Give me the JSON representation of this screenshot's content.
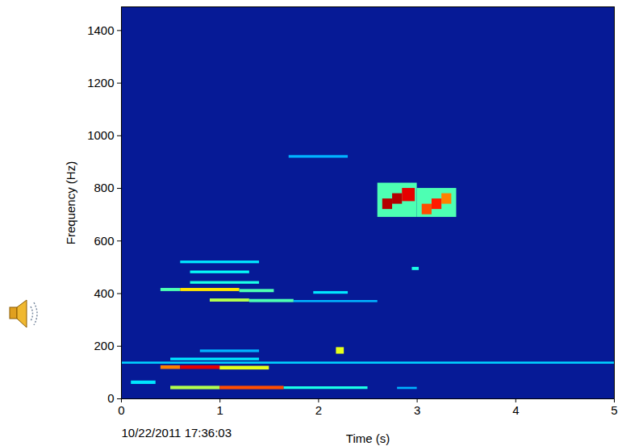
{
  "chart_data": {
    "type": "heatmap",
    "xlabel": "Time (s)",
    "ylabel": "Frequency (Hz)",
    "annotation": "10/22/2011 17:36:03",
    "xlim": [
      0,
      5
    ],
    "ylim": [
      0,
      1490
    ],
    "xticks": [
      0,
      1,
      2,
      3,
      4,
      5
    ],
    "yticks": [
      0,
      200,
      400,
      600,
      800,
      1000,
      1200,
      1400
    ],
    "zlim": [
      0,
      1
    ],
    "cells": [
      {
        "t0": 0.0,
        "t1": 5.0,
        "f0": 132,
        "f1": 140,
        "v": 0.33
      },
      {
        "t0": 0.1,
        "t1": 0.35,
        "f0": 55,
        "f1": 68,
        "v": 0.35
      },
      {
        "t0": 0.5,
        "t1": 1.0,
        "f0": 35,
        "f1": 48,
        "v": 0.55
      },
      {
        "t0": 1.0,
        "t1": 1.65,
        "f0": 35,
        "f1": 48,
        "v": 0.8
      },
      {
        "t0": 1.65,
        "t1": 2.5,
        "f0": 36,
        "f1": 46,
        "v": 0.4
      },
      {
        "t0": 2.8,
        "t1": 3.0,
        "f0": 36,
        "f1": 44,
        "v": 0.3
      },
      {
        "t0": 0.4,
        "t1": 0.6,
        "f0": 112,
        "f1": 126,
        "v": 0.75
      },
      {
        "t0": 0.6,
        "t1": 1.0,
        "f0": 112,
        "f1": 126,
        "v": 0.9
      },
      {
        "t0": 1.0,
        "t1": 1.5,
        "f0": 110,
        "f1": 124,
        "v": 0.6
      },
      {
        "t0": 0.5,
        "t1": 1.4,
        "f0": 145,
        "f1": 155,
        "v": 0.35
      },
      {
        "t0": 0.8,
        "t1": 1.4,
        "f0": 176,
        "f1": 186,
        "v": 0.3
      },
      {
        "t0": 2.18,
        "t1": 2.26,
        "f0": 170,
        "f1": 195,
        "v": 0.6
      },
      {
        "t0": 0.9,
        "t1": 1.3,
        "f0": 368,
        "f1": 380,
        "v": 0.55
      },
      {
        "t0": 1.3,
        "t1": 1.75,
        "f0": 366,
        "f1": 378,
        "v": 0.45
      },
      {
        "t0": 1.75,
        "t1": 2.6,
        "f0": 366,
        "f1": 374,
        "v": 0.3
      },
      {
        "t0": 0.4,
        "t1": 0.6,
        "f0": 408,
        "f1": 420,
        "v": 0.45
      },
      {
        "t0": 0.6,
        "t1": 1.2,
        "f0": 408,
        "f1": 420,
        "v": 0.65
      },
      {
        "t0": 1.2,
        "t1": 1.55,
        "f0": 404,
        "f1": 416,
        "v": 0.45
      },
      {
        "t0": 1.95,
        "t1": 2.3,
        "f0": 398,
        "f1": 408,
        "v": 0.35
      },
      {
        "t0": 0.7,
        "t1": 1.4,
        "f0": 436,
        "f1": 446,
        "v": 0.4
      },
      {
        "t0": 0.7,
        "t1": 1.3,
        "f0": 476,
        "f1": 486,
        "v": 0.38
      },
      {
        "t0": 0.6,
        "t1": 1.4,
        "f0": 514,
        "f1": 524,
        "v": 0.35
      },
      {
        "t0": 2.95,
        "t1": 3.02,
        "f0": 488,
        "f1": 500,
        "v": 0.4
      },
      {
        "t0": 1.7,
        "t1": 2.3,
        "f0": 915,
        "f1": 925,
        "v": 0.3
      },
      {
        "t0": 2.6,
        "t1": 3.0,
        "f0": 690,
        "f1": 820,
        "v": 0.45
      },
      {
        "t0": 2.65,
        "t1": 2.75,
        "f0": 720,
        "f1": 760,
        "v": 0.95
      },
      {
        "t0": 2.75,
        "t1": 2.85,
        "f0": 740,
        "f1": 780,
        "v": 0.95
      },
      {
        "t0": 2.85,
        "t1": 2.98,
        "f0": 750,
        "f1": 800,
        "v": 0.9
      },
      {
        "t0": 3.0,
        "t1": 3.4,
        "f0": 690,
        "f1": 800,
        "v": 0.45
      },
      {
        "t0": 3.05,
        "t1": 3.15,
        "f0": 700,
        "f1": 740,
        "v": 0.8
      },
      {
        "t0": 3.15,
        "t1": 3.25,
        "f0": 720,
        "f1": 760,
        "v": 0.85
      },
      {
        "t0": 3.25,
        "t1": 3.35,
        "f0": 740,
        "f1": 780,
        "v": 0.75
      }
    ]
  }
}
